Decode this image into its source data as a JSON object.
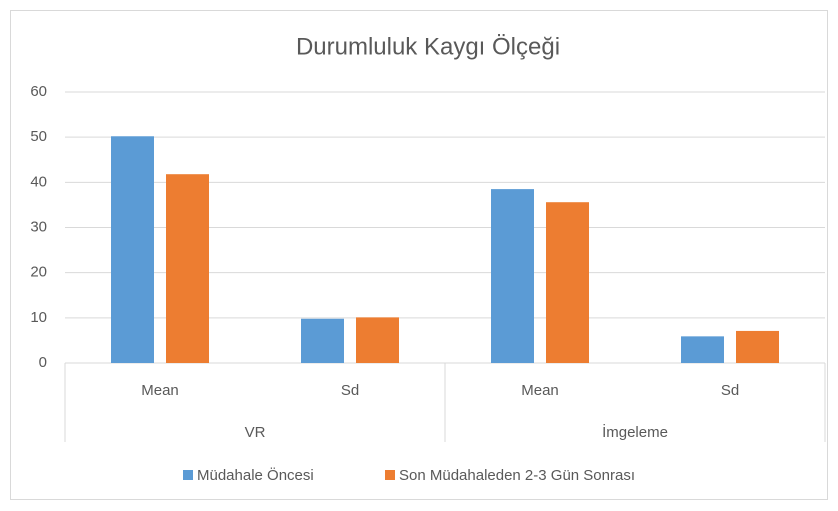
{
  "chart_data": {
    "type": "bar",
    "title": "Durumluluk Kaygı Ölçeği",
    "groups": [
      {
        "label": "VR",
        "categories": [
          "Mean",
          "Sd"
        ]
      },
      {
        "label": "İmgeleme",
        "categories": [
          "Mean",
          "Sd"
        ]
      }
    ],
    "series": [
      {
        "name": "Müdahale Öncesi",
        "color": "#5b9bd5",
        "values": [
          50.2,
          9.8,
          38.5,
          5.9
        ]
      },
      {
        "name": "Son Müdahaleden 2-3 Gün Sonrası",
        "color": "#ed7d31",
        "values": [
          41.8,
          10.1,
          35.6,
          7.1
        ]
      }
    ],
    "ylim": [
      0,
      60
    ],
    "yticks": [
      0,
      10,
      20,
      30,
      40,
      50,
      60
    ],
    "grid": true,
    "legend": "bottom"
  }
}
